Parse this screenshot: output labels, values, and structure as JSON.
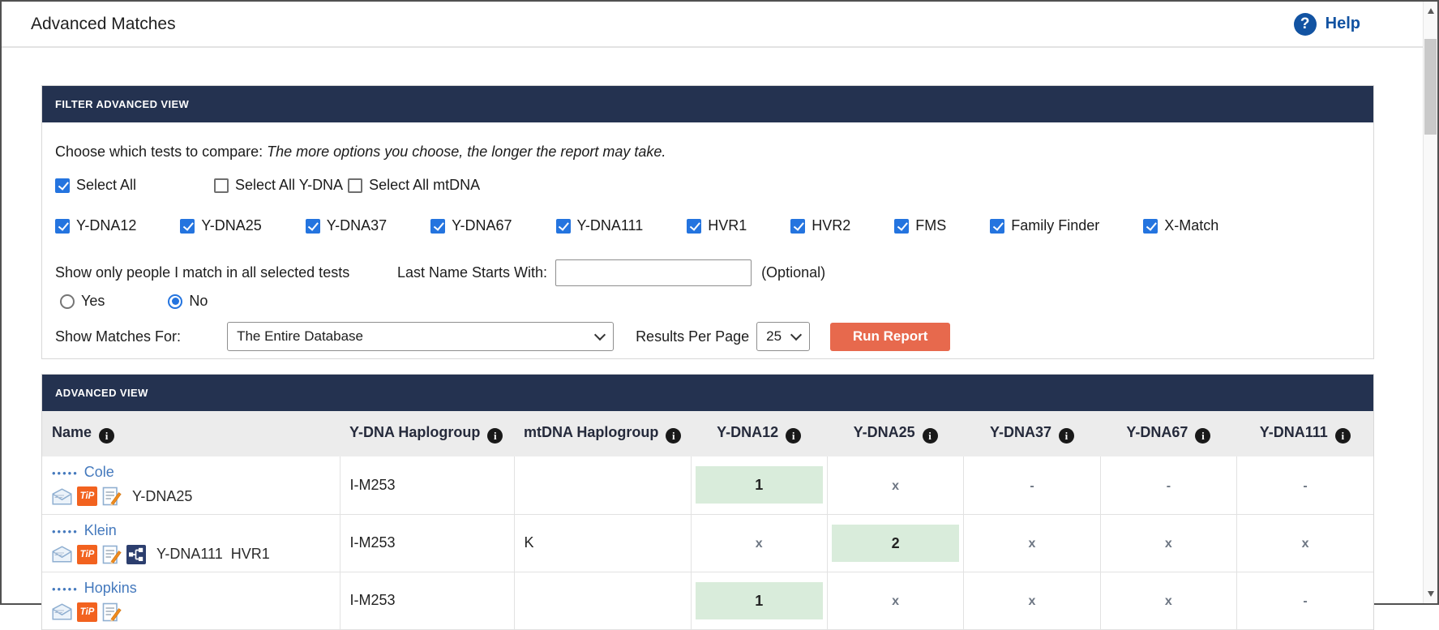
{
  "page": {
    "title": "Advanced Matches",
    "help_label": "Help"
  },
  "colors": {
    "panel_header_navy": "#243250",
    "run_button_orange": "#e7694d",
    "match_highlight_green": "#d9ecdb",
    "link_blue": "#4479bd",
    "help_blue": "#1253a2",
    "checkbox_blue": "#2474df",
    "tip_badge_orange": "#f2621f",
    "pedigree_icon_navy": "#2c3e6e"
  },
  "filter": {
    "panel_title": "FILTER ADVANCED VIEW",
    "intro_normal": "Choose which tests to compare:",
    "intro_italic": "The more options you choose, the longer the report may take.",
    "select_all_group": [
      {
        "label": "Select All",
        "checked": true
      },
      {
        "label": "Select All Y-DNA",
        "checked": false
      },
      {
        "label": "Select All mtDNA",
        "checked": false
      }
    ],
    "tests": [
      {
        "label": "Y-DNA12",
        "checked": true
      },
      {
        "label": "Y-DNA25",
        "checked": true
      },
      {
        "label": "Y-DNA37",
        "checked": true
      },
      {
        "label": "Y-DNA67",
        "checked": true
      },
      {
        "label": "Y-DNA111",
        "checked": true
      },
      {
        "label": "HVR1",
        "checked": true
      },
      {
        "label": "HVR2",
        "checked": true
      },
      {
        "label": "FMS",
        "checked": true
      },
      {
        "label": "Family Finder",
        "checked": true
      },
      {
        "label": "X-Match",
        "checked": true
      }
    ],
    "match_all_label": "Show only people I match in all selected tests",
    "last_name_label": "Last Name Starts With:",
    "last_name_value": "",
    "optional_label": "(Optional)",
    "radios": [
      {
        "label": "Yes",
        "selected": false
      },
      {
        "label": "No",
        "selected": true
      }
    ],
    "show_matches_label": "Show Matches For:",
    "show_matches_value": "The Entire Database",
    "results_per_page_label": "Results Per Page",
    "results_per_page_value": "25",
    "run_report_label": "Run Report"
  },
  "table": {
    "panel_title": "ADVANCED VIEW",
    "columns": [
      {
        "label": "Name"
      },
      {
        "label": "Y-DNA Haplogroup"
      },
      {
        "label": "mtDNA Haplogroup"
      },
      {
        "label": "Y-DNA12"
      },
      {
        "label": "Y-DNA25"
      },
      {
        "label": "Y-DNA37"
      },
      {
        "label": "Y-DNA67"
      },
      {
        "label": "Y-DNA111"
      }
    ],
    "rows": [
      {
        "masked_prefix": "•••••",
        "name": "Cole",
        "icons": [
          "envelope-icon",
          "tip-icon",
          "notes-icon"
        ],
        "tests_label": "Y-DNA25",
        "y_haplogroup": "I-M253",
        "mt_haplogroup": "",
        "values": [
          {
            "text": "1",
            "highlight": true
          },
          {
            "text": "x"
          },
          {
            "text": "-"
          },
          {
            "text": "-"
          },
          {
            "text": "-"
          }
        ]
      },
      {
        "masked_prefix": "•••••",
        "name": "Klein",
        "icons": [
          "envelope-icon",
          "tip-icon",
          "notes-icon",
          "pedigree-icon"
        ],
        "tests_label": "Y-DNA111  HVR1",
        "y_haplogroup": "I-M253",
        "mt_haplogroup": "K",
        "values": [
          {
            "text": "x"
          },
          {
            "text": "2",
            "highlight": true
          },
          {
            "text": "x"
          },
          {
            "text": "x"
          },
          {
            "text": "x"
          }
        ]
      },
      {
        "masked_prefix": "•••••",
        "name": "Hopkins",
        "icons": [
          "envelope-icon",
          "tip-icon",
          "notes-icon"
        ],
        "tests_label": "",
        "y_haplogroup": "I-M253",
        "mt_haplogroup": "",
        "values": [
          {
            "text": "1",
            "highlight": true
          },
          {
            "text": "x"
          },
          {
            "text": "x"
          },
          {
            "text": "x"
          },
          {
            "text": "-"
          }
        ]
      }
    ]
  }
}
